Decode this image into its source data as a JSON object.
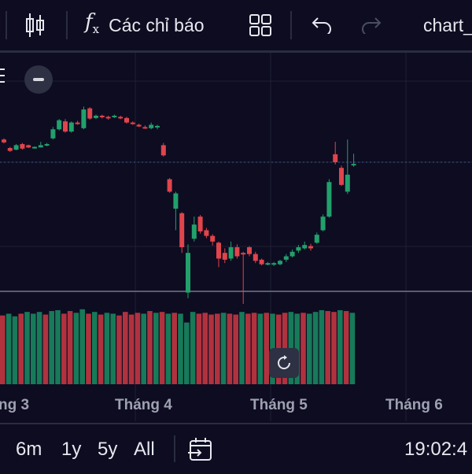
{
  "toolbar": {
    "indicators_label": "Các chỉ báo",
    "chart_name": "chart_"
  },
  "time_ranges": [
    "6m",
    "1y",
    "5y",
    "All"
  ],
  "clock": "19:02:4",
  "colors": {
    "background": "#0d0c21",
    "up": "#22a06b",
    "down": "#e0444c",
    "volume_up": "#177a59",
    "volume_down": "#b0323f",
    "grid": "#1f2133"
  },
  "chart_data": {
    "type": "candlestick",
    "x_tick_labels": [
      "ng 3",
      "Tháng 4",
      "Tháng 5",
      "Tháng 6"
    ],
    "candles": [
      {
        "o": 0.4,
        "c": 0.35,
        "h": 0.42,
        "l": 0.33
      },
      {
        "o": 0.25,
        "c": 0.2,
        "h": 0.27,
        "l": 0.18
      },
      {
        "o": 0.22,
        "c": 0.3,
        "h": 0.32,
        "l": 0.21
      },
      {
        "o": 0.32,
        "c": 0.24,
        "h": 0.34,
        "l": 0.22
      },
      {
        "o": 0.3,
        "c": 0.26,
        "h": 0.31,
        "l": 0.25
      },
      {
        "o": 0.26,
        "c": 0.27,
        "h": 0.28,
        "l": 0.24
      },
      {
        "o": 0.26,
        "c": 0.3,
        "h": 0.36,
        "l": 0.26
      },
      {
        "o": 0.3,
        "c": 0.32,
        "h": 0.34,
        "l": 0.28
      },
      {
        "o": 0.42,
        "c": 0.58,
        "h": 0.62,
        "l": 0.4
      },
      {
        "o": 0.58,
        "c": 0.74,
        "h": 0.76,
        "l": 0.56
      },
      {
        "o": 0.72,
        "c": 0.54,
        "h": 0.76,
        "l": 0.52
      },
      {
        "o": 0.54,
        "c": 0.7,
        "h": 0.72,
        "l": 0.52
      },
      {
        "o": 0.7,
        "c": 0.68,
        "h": 0.73,
        "l": 0.66
      },
      {
        "o": 0.6,
        "c": 0.93,
        "h": 0.98,
        "l": 0.58
      },
      {
        "o": 0.95,
        "c": 0.77,
        "h": 0.97,
        "l": 0.75
      },
      {
        "o": 0.78,
        "c": 0.82,
        "h": 0.84,
        "l": 0.76
      },
      {
        "o": 0.82,
        "c": 0.8,
        "h": 0.84,
        "l": 0.77
      },
      {
        "o": 0.8,
        "c": 0.78,
        "h": 0.82,
        "l": 0.75
      },
      {
        "o": 0.8,
        "c": 0.82,
        "h": 0.84,
        "l": 0.78
      },
      {
        "o": 0.8,
        "c": 0.79,
        "h": 0.82,
        "l": 0.76
      },
      {
        "o": 0.78,
        "c": 0.7,
        "h": 0.8,
        "l": 0.68
      },
      {
        "o": 0.7,
        "c": 0.68,
        "h": 0.72,
        "l": 0.66
      },
      {
        "o": 0.66,
        "c": 0.63,
        "h": 0.68,
        "l": 0.62
      },
      {
        "o": 0.62,
        "c": 0.6,
        "h": 0.65,
        "l": 0.59
      },
      {
        "o": 0.6,
        "c": 0.66,
        "h": 0.7,
        "l": 0.58
      },
      {
        "o": 0.62,
        "c": 0.64,
        "h": 0.66,
        "l": 0.58
      },
      {
        "o": 0.3,
        "c": 0.12,
        "h": 0.34,
        "l": 0.1
      },
      {
        "o": -0.3,
        "c": -0.52,
        "h": -0.28,
        "l": -0.54
      },
      {
        "o": -0.82,
        "c": -0.55,
        "h": -0.52,
        "l": -1.2
      },
      {
        "o": -0.9,
        "c": -1.5,
        "h": -0.88,
        "l": -1.6
      },
      {
        "o": -2.3,
        "c": -1.6,
        "h": -1.45,
        "l": -2.4
      },
      {
        "o": -1.35,
        "c": -1.1,
        "h": -0.96,
        "l": -1.4
      },
      {
        "o": -0.96,
        "c": -1.22,
        "h": -0.93,
        "l": -1.26
      },
      {
        "o": -1.2,
        "c": -1.3,
        "h": -1.16,
        "l": -1.34
      },
      {
        "o": -1.3,
        "c": -1.4,
        "h": -1.27,
        "l": -1.47
      },
      {
        "o": -1.42,
        "c": -1.7,
        "h": -1.4,
        "l": -1.85
      },
      {
        "o": -1.6,
        "c": -1.72,
        "h": -1.52,
        "l": -1.78
      },
      {
        "o": -1.7,
        "c": -1.5,
        "h": -1.4,
        "l": -1.74
      },
      {
        "o": -1.5,
        "c": -1.66,
        "h": -1.45,
        "l": -1.7
      },
      {
        "o": -1.6,
        "c": -1.62,
        "h": -1.58,
        "l": -2.5
      },
      {
        "o": -1.5,
        "c": -1.62,
        "h": -1.48,
        "l": -1.66
      },
      {
        "o": -1.62,
        "c": -1.74,
        "h": -1.58,
        "l": -1.78
      },
      {
        "o": -1.72,
        "c": -1.8,
        "h": -1.7,
        "l": -1.82
      },
      {
        "o": -1.8,
        "c": -1.78,
        "h": -1.76,
        "l": -1.82
      },
      {
        "o": -1.8,
        "c": -1.78,
        "h": -1.76,
        "l": -1.83
      },
      {
        "o": -1.8,
        "c": -1.74,
        "h": -1.72,
        "l": -1.82
      },
      {
        "o": -1.72,
        "c": -1.66,
        "h": -1.62,
        "l": -1.76
      },
      {
        "o": -1.66,
        "c": -1.58,
        "h": -1.54,
        "l": -1.68
      },
      {
        "o": -1.56,
        "c": -1.5,
        "h": -1.46,
        "l": -1.6
      },
      {
        "o": -1.52,
        "c": -1.46,
        "h": -1.4,
        "l": -1.54
      },
      {
        "o": -1.48,
        "c": -1.52,
        "h": -1.44,
        "l": -1.56
      },
      {
        "o": -1.42,
        "c": -1.28,
        "h": -1.24,
        "l": -1.44
      },
      {
        "o": -1.2,
        "c": -0.96,
        "h": -0.92,
        "l": -1.22
      },
      {
        "o": -0.96,
        "c": -0.35,
        "h": -0.3,
        "l": -0.98
      },
      {
        "o": 0.14,
        "c": 0.0,
        "h": 0.36,
        "l": -0.04
      },
      {
        "o": -0.1,
        "c": -0.4,
        "h": -0.06,
        "l": -0.42
      },
      {
        "o": -0.52,
        "c": -0.22,
        "h": 0.4,
        "l": -0.56
      },
      {
        "o": -0.05,
        "c": -0.03,
        "h": 0.15,
        "l": -0.08
      }
    ],
    "volumes": [
      {
        "v": 0.78,
        "up": false
      },
      {
        "v": 0.8,
        "up": true
      },
      {
        "v": 0.77,
        "up": true
      },
      {
        "v": 0.8,
        "up": false
      },
      {
        "v": 0.82,
        "up": true
      },
      {
        "v": 0.8,
        "up": true
      },
      {
        "v": 0.82,
        "up": true
      },
      {
        "v": 0.79,
        "up": false
      },
      {
        "v": 0.83,
        "up": true
      },
      {
        "v": 0.84,
        "up": true
      },
      {
        "v": 0.8,
        "up": false
      },
      {
        "v": 0.83,
        "up": false
      },
      {
        "v": 0.81,
        "up": true
      },
      {
        "v": 0.85,
        "up": true
      },
      {
        "v": 0.8,
        "up": false
      },
      {
        "v": 0.82,
        "up": true
      },
      {
        "v": 0.79,
        "up": false
      },
      {
        "v": 0.81,
        "up": true
      },
      {
        "v": 0.8,
        "up": true
      },
      {
        "v": 0.78,
        "up": false
      },
      {
        "v": 0.82,
        "up": false
      },
      {
        "v": 0.79,
        "up": false
      },
      {
        "v": 0.81,
        "up": false
      },
      {
        "v": 0.8,
        "up": true
      },
      {
        "v": 0.83,
        "up": false
      },
      {
        "v": 0.81,
        "up": true
      },
      {
        "v": 0.82,
        "up": false
      },
      {
        "v": 0.8,
        "up": true
      },
      {
        "v": 0.81,
        "up": false
      },
      {
        "v": 0.8,
        "up": true
      },
      {
        "v": 0.7,
        "up": true
      },
      {
        "v": 0.82,
        "up": true
      },
      {
        "v": 0.8,
        "up": false
      },
      {
        "v": 0.81,
        "up": false
      },
      {
        "v": 0.79,
        "up": false
      },
      {
        "v": 0.8,
        "up": false
      },
      {
        "v": 0.81,
        "up": true
      },
      {
        "v": 0.8,
        "up": false
      },
      {
        "v": 0.79,
        "up": false
      },
      {
        "v": 0.82,
        "up": true
      },
      {
        "v": 0.8,
        "up": false
      },
      {
        "v": 0.81,
        "up": false
      },
      {
        "v": 0.8,
        "up": true
      },
      {
        "v": 0.81,
        "up": false
      },
      {
        "v": 0.8,
        "up": true
      },
      {
        "v": 0.79,
        "up": false
      },
      {
        "v": 0.81,
        "up": false
      },
      {
        "v": 0.82,
        "up": true
      },
      {
        "v": 0.8,
        "up": true
      },
      {
        "v": 0.81,
        "up": false
      },
      {
        "v": 0.8,
        "up": true
      },
      {
        "v": 0.82,
        "up": true
      },
      {
        "v": 0.84,
        "up": true
      },
      {
        "v": 0.83,
        "up": false
      },
      {
        "v": 0.82,
        "up": false
      },
      {
        "v": 0.84,
        "up": true
      },
      {
        "v": 0.83,
        "up": false
      },
      {
        "v": 0.81,
        "up": true
      }
    ]
  }
}
